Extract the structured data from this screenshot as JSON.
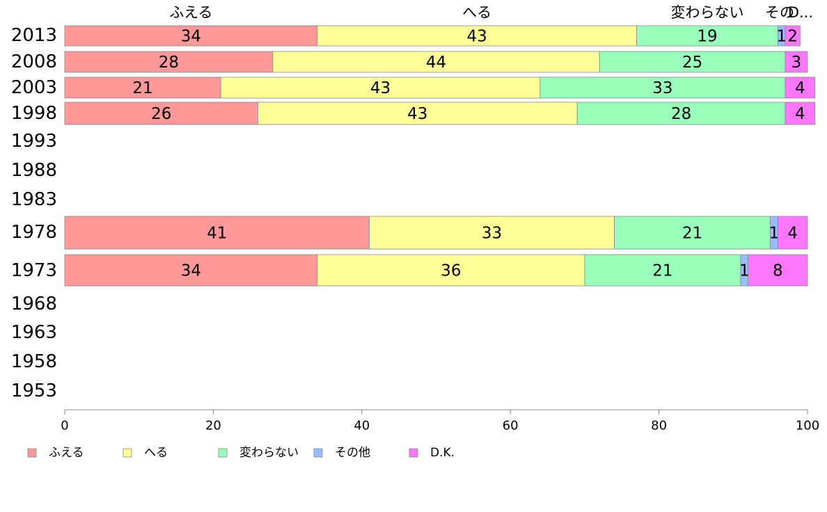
{
  "chart_data": {
    "type": "bar",
    "orientation": "horizontal",
    "stacked": true,
    "categories": [
      "2013",
      "2008",
      "2003",
      "1998",
      "1993",
      "1988",
      "1983",
      "1978",
      "1973",
      "1968",
      "1963",
      "1958",
      "1953"
    ],
    "series": [
      {
        "name": "ふえる",
        "color": "#ff9999",
        "values": [
          34,
          28,
          21,
          26,
          null,
          null,
          null,
          41,
          34,
          null,
          null,
          null,
          null
        ]
      },
      {
        "name": "へる",
        "color": "#ffff99",
        "values": [
          43,
          44,
          43,
          43,
          null,
          null,
          null,
          33,
          36,
          null,
          null,
          null,
          null
        ]
      },
      {
        "name": "変わらない",
        "color": "#99ffbb",
        "values": [
          19,
          25,
          33,
          28,
          null,
          null,
          null,
          21,
          21,
          null,
          null,
          null,
          null
        ]
      },
      {
        "name": "その他",
        "color": "#99bbff",
        "values": [
          1,
          0,
          0,
          0,
          null,
          null,
          null,
          1,
          1,
          null,
          null,
          null,
          null
        ]
      },
      {
        "name": "D.K.",
        "color": "#ff77ff",
        "values": [
          2,
          3,
          4,
          4,
          null,
          null,
          null,
          4,
          8,
          null,
          null,
          null,
          null
        ]
      }
    ],
    "top_labels": [
      "ふえる",
      "へる",
      "変わらない",
      "その",
      "D..."
    ],
    "xlim": [
      0,
      100
    ],
    "xticks": [
      0,
      20,
      40,
      60,
      80,
      100
    ],
    "legend_position": "bottom-left",
    "grid": false
  }
}
